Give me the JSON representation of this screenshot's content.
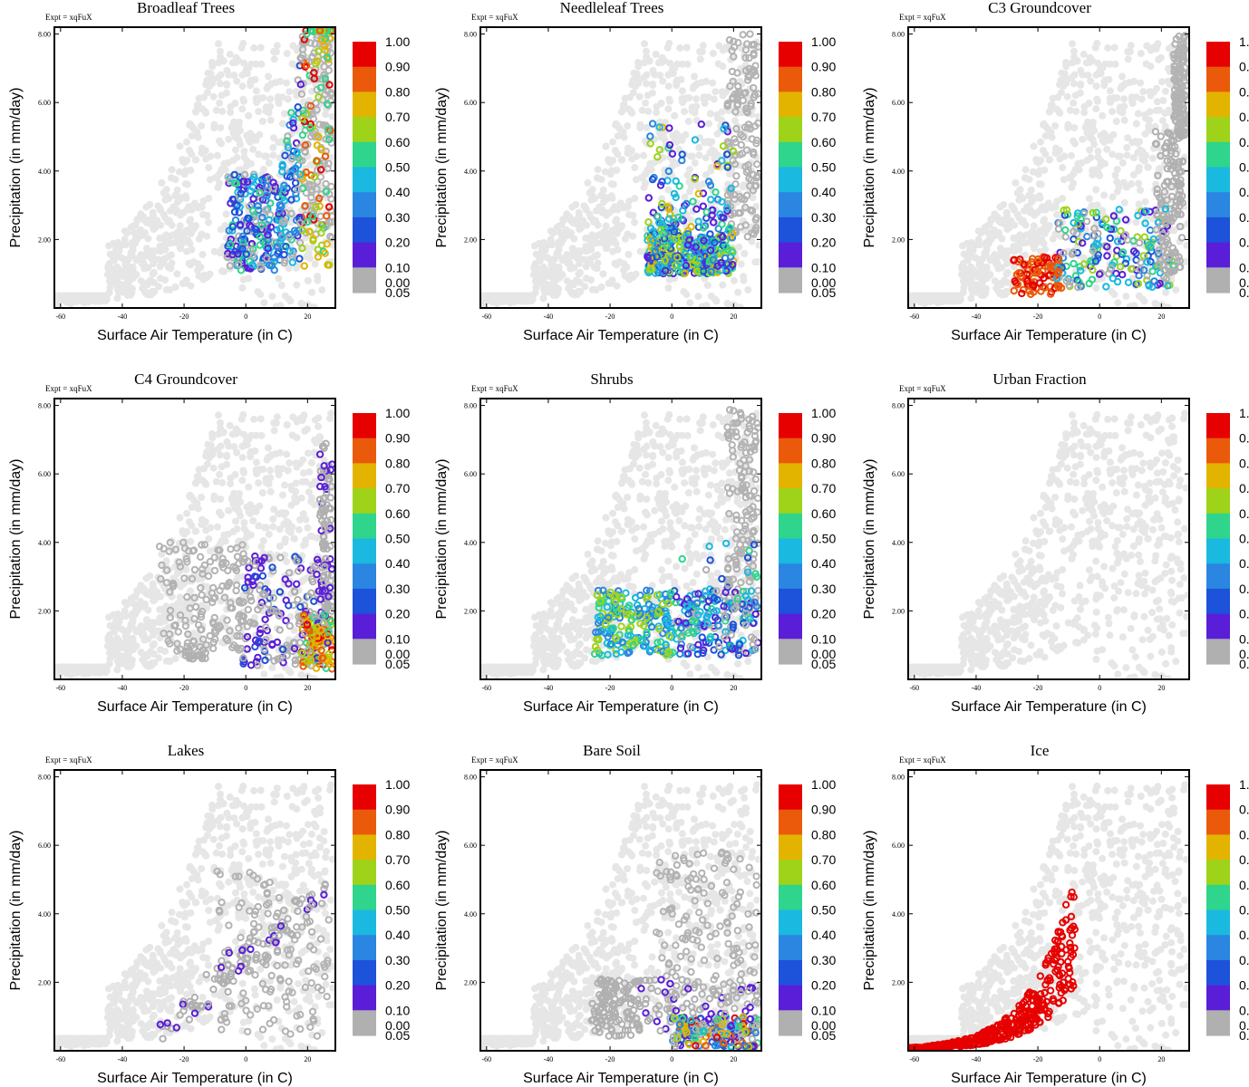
{
  "figure": {
    "expt_label": "Expt = xqFuX",
    "x_axis_label": "Surface Air Temperature (in C)",
    "y_axis_label": "Precipitation (in mm/day)",
    "x_ticks": [
      "-60",
      "-40",
      "-20",
      "0",
      "20"
    ],
    "y_ticks": [
      "2.00",
      "4.00",
      "6.00",
      "8.00"
    ],
    "colorbar_labels": [
      "1.00",
      "0.90",
      "0.80",
      "0.70",
      "0.60",
      "0.50",
      "0.40",
      "0.30",
      "0.20",
      "0.10",
      "0.05",
      "0.00"
    ]
  },
  "colors": {
    "background_points": "#e6e6e6",
    "zero_points": "#b3b3b3",
    "colorbar": [
      "#e60000",
      "#ea5a0a",
      "#e2b400",
      "#9ed31a",
      "#2fd58c",
      "#1ab9e0",
      "#2a86e0",
      "#1d52da",
      "#5a1ed8",
      "#b0b0b0"
    ]
  },
  "chart_data": [
    {
      "type": "scatter",
      "title": "Broadleaf Trees",
      "xlabel": "Surface Air Temperature (in C)",
      "ylabel": "Precipitation (in mm/day)",
      "xlim": [
        -62,
        29
      ],
      "ylim": [
        0,
        8.2
      ],
      "highlight": {
        "tmin": -6,
        "tmax": 28,
        "pmin": 1.1,
        "pmax": 8.2
      },
      "fraction_trend": "high fractions (0.8-1.0) at warm wet points, low fractions at cooler edges"
    },
    {
      "type": "scatter",
      "title": "Needleleaf Trees",
      "xlabel": "Surface Air Temperature (in C)",
      "ylabel": "Precipitation (in mm/day)",
      "xlim": [
        -62,
        29
      ],
      "ylim": [
        0,
        8.2
      ],
      "highlight": {
        "tmin": -8,
        "tmax": 20,
        "pmin": 1.0,
        "pmax": 6.5
      },
      "fraction_trend": "mostly 0.3-0.7, few high values"
    },
    {
      "type": "scatter",
      "title": "C3 Groundcover",
      "xlabel": "Surface Air Temperature (in C)",
      "ylabel": "Precipitation (in mm/day)",
      "xlim": [
        -62,
        29
      ],
      "ylim": [
        0,
        8.2
      ],
      "highlight": {
        "tmin": -28,
        "tmax": 27,
        "pmin": 0.2,
        "pmax": 6.6
      },
      "fraction_trend": "high fractions (red) at cold dry end near -20 C, low fractions at warm wet end"
    },
    {
      "type": "scatter",
      "title": "C4 Groundcover",
      "xlabel": "Surface Air Temperature (in C)",
      "ylabel": "Precipitation (in mm/day)",
      "xlim": [
        -62,
        29
      ],
      "ylim": [
        0,
        8.2
      ],
      "highlight": {
        "tmin": -22,
        "tmax": 28,
        "pmin": 0.3,
        "pmax": 8.2
      },
      "fraction_trend": "high fractions at warm dry points near 25 C, low elsewhere"
    },
    {
      "type": "scatter",
      "title": "Shrubs",
      "xlabel": "Surface Air Temperature (in C)",
      "ylabel": "Precipitation (in mm/day)",
      "xlim": [
        -62,
        29
      ],
      "ylim": [
        0,
        8.2
      ],
      "highlight": {
        "tmin": -25,
        "tmax": 28,
        "pmin": 0.5,
        "pmax": 6.6
      },
      "fraction_trend": "moderate fractions 0.3-0.7 across the dry band, low at wetter points"
    },
    {
      "type": "scatter",
      "title": "Urban Fraction",
      "xlabel": "Surface Air Temperature (in C)",
      "ylabel": "Precipitation (in mm/day)",
      "xlim": [
        -62,
        29
      ],
      "ylim": [
        0,
        8.2
      ],
      "highlight": null,
      "fraction_trend": "all points near zero fraction"
    },
    {
      "type": "scatter",
      "title": "Lakes",
      "xlabel": "Surface Air Temperature (in C)",
      "ylabel": "Precipitation (in mm/day)",
      "xlim": [
        -62,
        29
      ],
      "ylim": [
        0,
        8.2
      ],
      "highlight": {
        "tmin": -28,
        "tmax": 26,
        "pmin": 0.5,
        "pmax": 6.0
      },
      "fraction_trend": "low fractions 0.05-0.2"
    },
    {
      "type": "scatter",
      "title": "Bare Soil",
      "xlabel": "Surface Air Temperature (in C)",
      "ylabel": "Precipitation (in mm/day)",
      "xlim": [
        -62,
        29
      ],
      "ylim": [
        0,
        8.2
      ],
      "highlight": {
        "tmin": -33,
        "tmax": 28,
        "pmin": 0.1,
        "pmax": 2.6
      },
      "fraction_trend": "high fractions at warm very dry points, low fractions elsewhere"
    },
    {
      "type": "scatter",
      "title": "Ice",
      "xlabel": "Surface Air Temperature (in C)",
      "ylabel": "Precipitation (in mm/day)",
      "xlim": [
        -62,
        29
      ],
      "ylim": [
        0,
        8.2
      ],
      "highlight": {
        "tmin": -62,
        "tmax": -8,
        "pmin": 0.05,
        "pmax": 4.8
      },
      "fraction_trend": "fraction ~1.0 for cold points below -10 C"
    }
  ]
}
